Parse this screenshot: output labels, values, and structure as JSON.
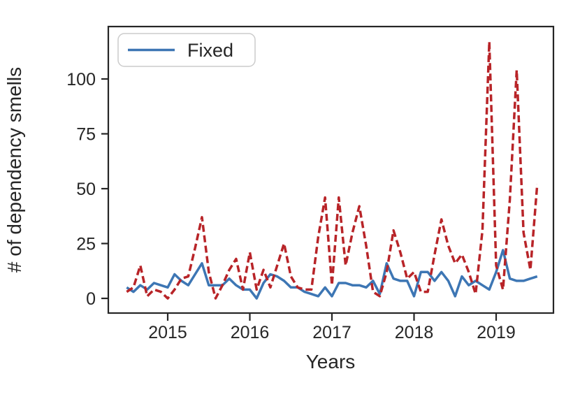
{
  "chart_data": {
    "type": "line",
    "title": "",
    "xlabel": "Years",
    "ylabel": "# of dependency smells",
    "x_cadence": "monthly",
    "x_start": "2014-07",
    "x_end": "2019-07",
    "x_tick_labels": [
      "2015",
      "2016",
      "2017",
      "2018",
      "2019"
    ],
    "y_ticks": [
      "0",
      "25",
      "50",
      "75",
      "100"
    ],
    "y_tick_values": [
      0,
      25,
      50,
      75,
      100
    ],
    "ylim": [
      -7,
      124
    ],
    "grid": "off",
    "legend": {
      "position": "upper-left",
      "entries": [
        {
          "label": "Fixed",
          "color": "#3d76b4",
          "line_style": "solid"
        }
      ]
    },
    "axis_color": "#262626",
    "background_color": "#ffffff",
    "series": [
      {
        "name": "Fixed",
        "color": "#3d76b4",
        "line_style": "solid",
        "values": [
          5,
          3,
          6,
          4,
          7,
          6,
          5,
          11,
          8,
          6,
          11,
          16,
          6,
          6,
          6,
          9,
          6,
          4,
          4,
          0,
          7,
          11,
          10,
          8,
          5,
          5,
          3,
          2,
          1,
          5,
          1,
          7,
          7,
          6,
          6,
          5,
          8,
          2,
          16,
          9,
          8,
          8,
          1,
          12,
          12,
          8,
          12,
          8,
          1,
          10,
          6,
          8,
          6,
          4,
          12,
          22,
          9,
          8,
          8,
          9,
          10
        ]
      },
      {
        "name": "",
        "color": "#b82428",
        "line_style": "dashed",
        "values": [
          3,
          5,
          15,
          1,
          4,
          3,
          0,
          4,
          9,
          10,
          23,
          37,
          12,
          0,
          6,
          13,
          18,
          4,
          21,
          4,
          13,
          5,
          15,
          25,
          10,
          5,
          4,
          4,
          28,
          46,
          6,
          46,
          15,
          30,
          42,
          24,
          3,
          1,
          12,
          31,
          21,
          9,
          12,
          3,
          3,
          20,
          36,
          24,
          16,
          20,
          12,
          2,
          31,
          117,
          15,
          4,
          45,
          104,
          30,
          13,
          52
        ]
      }
    ]
  }
}
